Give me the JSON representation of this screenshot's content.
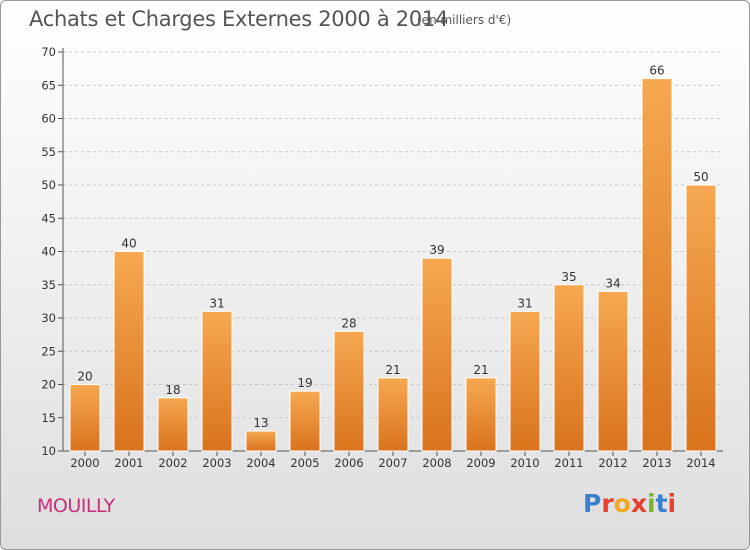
{
  "header": {
    "title": "Achats et Charges Externes 2000 à 2014",
    "unit": "(en milliers d'€)"
  },
  "footer": {
    "commune": "MOUILLY",
    "logo_text": "Proxiti",
    "logo_colors": [
      "#3a7fd0",
      "#e8402c",
      "#f4a71c",
      "#e8402c",
      "#7ab530",
      "#3a7fd0",
      "#e8402c"
    ]
  },
  "chart_data": {
    "type": "bar",
    "categories": [
      "2000",
      "2001",
      "2002",
      "2003",
      "2004",
      "2005",
      "2006",
      "2007",
      "2008",
      "2009",
      "2010",
      "2011",
      "2012",
      "2013",
      "2014"
    ],
    "values": [
      20,
      40,
      18,
      31,
      13,
      19,
      28,
      21,
      39,
      21,
      31,
      35,
      34,
      66,
      50
    ],
    "ylim": [
      10,
      70
    ],
    "yticks": [
      10,
      15,
      20,
      25,
      30,
      35,
      40,
      45,
      50,
      55,
      60,
      65,
      70
    ],
    "grid": "horizontal dashed",
    "colors": {
      "bar_top": "#f6a851",
      "bar_bottom": "#d9731c",
      "bar_edge": "#ffffff",
      "text": "#333333"
    }
  }
}
